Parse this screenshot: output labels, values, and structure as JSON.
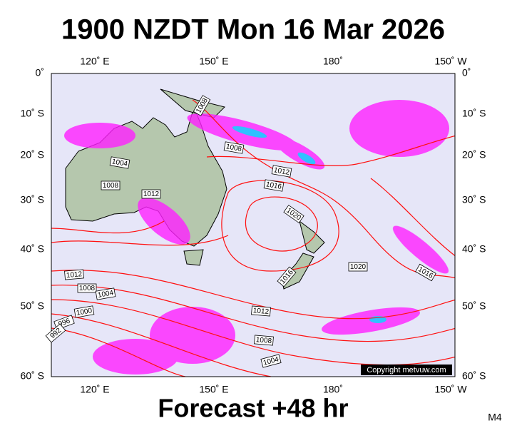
{
  "title": "1900 NZDT Mon 16 Mar 2026",
  "footer": "Forecast +48 hr",
  "corner_label": "M4",
  "copyright": "Copyright metvuw.com",
  "axes": {
    "top": [
      "120˚ E",
      "150˚ E",
      "180˚",
      "150˚ W"
    ],
    "bottom": [
      "120˚ E",
      "150˚ E",
      "180˚",
      "150˚ W"
    ],
    "left": [
      "0˚",
      "10˚ S",
      "20˚ S",
      "30˚ S",
      "40˚ S",
      "50˚ S",
      "60˚ S"
    ],
    "right": [
      "0˚",
      "10˚ S",
      "20˚ S",
      "30˚ S",
      "40˚ S",
      "50˚ S",
      "60˚ S"
    ]
  },
  "isobar_labels": [
    "1008",
    "1004",
    "1008",
    "1012",
    "1008",
    "1012",
    "1016",
    "1020",
    "1020",
    "1016",
    "1016",
    "1012",
    "1008",
    "1004",
    "1000",
    "996",
    "992",
    "1012",
    "1008",
    "1004"
  ]
}
